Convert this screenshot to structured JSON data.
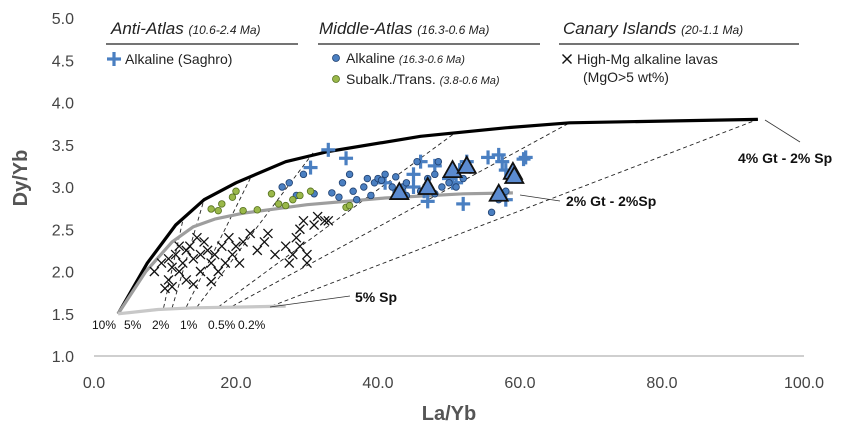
{
  "chart_data": {
    "type": "scatter",
    "xlabel": "La/Yb",
    "ylabel": "Dy/Yb",
    "xlim": [
      0,
      100
    ],
    "ylim": [
      1.0,
      5.0
    ],
    "x_ticks": [
      "0.0",
      "20.0",
      "40.0",
      "60.0",
      "80.0",
      "100.0"
    ],
    "y_ticks": [
      "1.0",
      "1.5",
      "2.0",
      "2.5",
      "3.0",
      "3.5",
      "4.0",
      "4.5",
      "5.0"
    ],
    "grid": false,
    "colors": {
      "blue_cross": "#4a7fc1",
      "blue_dot": "#4a7fc1",
      "green_dot": "#9ab84a",
      "triangle": "#5b8bd0",
      "black_curve": "#000000",
      "gray_curve": "#9e9e9e",
      "light_curve": "#c8c8c8"
    },
    "legend_groups": [
      {
        "header": "Anti-Atlas",
        "age": "(10.6-2.4 Ma)",
        "entries": [
          {
            "marker": "blue-cross",
            "label": "Alkaline (Saghro)",
            "age": ""
          }
        ]
      },
      {
        "header": "Middle-Atlas",
        "age": "(16.3-0.6 Ma)",
        "entries": [
          {
            "marker": "blue-dot",
            "label": "Alkaline",
            "age": "(16.3-0.6 Ma)"
          },
          {
            "marker": "green-dot",
            "label": "Subalk./Trans.",
            "age": "(3.8-0.6 Ma)"
          }
        ]
      },
      {
        "header": "Canary Islands",
        "age": "(20-1.1 Ma)",
        "entries": [
          {
            "marker": "black-x",
            "label": "High-Mg alkaline lavas",
            "age": ""
          },
          {
            "marker": "none",
            "label": "(MgO>5 wt%)",
            "age": ""
          }
        ]
      }
    ],
    "melting_curves": [
      {
        "name": "4% Gt - 2% Sp",
        "points": [
          [
            3.4,
            1.5
          ],
          [
            7.5,
            2.1
          ],
          [
            11.5,
            2.55
          ],
          [
            15.5,
            2.85
          ],
          [
            20,
            3.05
          ],
          [
            27,
            3.3
          ],
          [
            33,
            3.42
          ],
          [
            46,
            3.6
          ],
          [
            58,
            3.7
          ],
          [
            67,
            3.76
          ],
          [
            80,
            3.78
          ],
          [
            93.5,
            3.8
          ]
        ]
      },
      {
        "name": "2% Gt - 2%Sp",
        "points": [
          [
            3.4,
            1.5
          ],
          [
            7.3,
            2.0
          ],
          [
            11,
            2.35
          ],
          [
            14,
            2.53
          ],
          [
            17,
            2.62
          ],
          [
            21,
            2.69
          ],
          [
            30,
            2.79
          ],
          [
            41,
            2.87
          ],
          [
            52,
            2.92
          ],
          [
            59,
            2.93
          ]
        ]
      },
      {
        "name": "5% Sp",
        "points": [
          [
            3.4,
            1.5
          ],
          [
            9,
            1.55
          ],
          [
            14,
            1.57
          ],
          [
            21,
            1.58
          ],
          [
            27,
            1.59
          ]
        ]
      }
    ],
    "melt_fraction_labels": [
      "10%",
      "5%",
      "2%",
      "1%",
      "0.5%",
      "0.2%"
    ],
    "melt_lines": [
      [
        [
          9.8,
          1.57
        ],
        [
          12.5,
          2.6
        ]
      ],
      [
        [
          11,
          1.57
        ],
        [
          15.5,
          2.85
        ]
      ],
      [
        [
          13,
          1.58
        ],
        [
          22,
          3.1
        ]
      ],
      [
        [
          14.5,
          1.58
        ],
        [
          31,
          3.42
        ]
      ],
      [
        [
          17.5,
          1.58
        ],
        [
          51,
          3.65
        ]
      ],
      [
        [
          19.5,
          1.59
        ],
        [
          67,
          3.76
        ]
      ],
      [
        [
          25,
          1.59
        ],
        [
          93.5,
          3.8
        ]
      ]
    ],
    "series": [
      {
        "name": "Alkaline (Saghro)",
        "marker": "blue-cross",
        "points": [
          [
            30.5,
            3.23
          ],
          [
            33,
            3.44
          ],
          [
            35.5,
            3.34
          ],
          [
            41,
            3.05
          ],
          [
            45,
            3.15
          ],
          [
            45,
            3.0
          ],
          [
            46.5,
            2.95
          ],
          [
            47,
            2.83
          ],
          [
            48,
            3.25
          ],
          [
            50,
            3.1
          ],
          [
            50.5,
            3.05
          ],
          [
            51,
            3.05
          ],
          [
            51.5,
            3.2
          ],
          [
            52.5,
            3.3
          ],
          [
            52,
            2.8
          ],
          [
            55.5,
            3.35
          ],
          [
            57,
            3.38
          ],
          [
            58,
            3.2
          ],
          [
            58,
            2.85
          ],
          [
            60.5,
            3.33
          ],
          [
            60.8,
            3.35
          ],
          [
            57.5,
            3.3
          ],
          [
            46,
            3.3
          ],
          [
            43,
            2.95
          ]
        ]
      },
      {
        "name": "Alkaline",
        "marker": "blue-dot",
        "points": [
          [
            26.5,
            3.0
          ],
          [
            27.5,
            3.05
          ],
          [
            28.5,
            2.9
          ],
          [
            29.5,
            3.15
          ],
          [
            31,
            2.92
          ],
          [
            33.5,
            2.93
          ],
          [
            34.5,
            2.88
          ],
          [
            35,
            3.05
          ],
          [
            36,
            3.15
          ],
          [
            36.5,
            2.95
          ],
          [
            37,
            2.85
          ],
          [
            38,
            3.0
          ],
          [
            38.5,
            3.1
          ],
          [
            39,
            2.9
          ],
          [
            39.5,
            3.05
          ],
          [
            40,
            3.1
          ],
          [
            40.5,
            3.08
          ],
          [
            41,
            3.15
          ],
          [
            42,
            3.0
          ],
          [
            42.5,
            3.12
          ],
          [
            43.5,
            3.0
          ],
          [
            44,
            3.05
          ],
          [
            45.5,
            3.3
          ],
          [
            46,
            2.95
          ],
          [
            47,
            3.1
          ],
          [
            48,
            3.15
          ],
          [
            48.5,
            3.3
          ],
          [
            49,
            3.0
          ],
          [
            50,
            3.05
          ],
          [
            51,
            3.0
          ],
          [
            52,
            3.1
          ],
          [
            53,
            3.2
          ],
          [
            56,
            2.7
          ],
          [
            57,
            2.85
          ],
          [
            58,
            2.95
          ],
          [
            48,
            2.92
          ],
          [
            44,
            2.9
          ]
        ]
      },
      {
        "name": "Subalk./Trans.",
        "marker": "green-dot",
        "points": [
          [
            16.5,
            2.74
          ],
          [
            17.5,
            2.72
          ],
          [
            18,
            2.8
          ],
          [
            19.5,
            2.88
          ],
          [
            20,
            2.95
          ],
          [
            21,
            2.72
          ],
          [
            23,
            2.73
          ],
          [
            25,
            2.92
          ],
          [
            26,
            2.8
          ],
          [
            27,
            2.78
          ],
          [
            28,
            2.85
          ],
          [
            29,
            2.9
          ],
          [
            30.5,
            2.95
          ],
          [
            35.5,
            2.76
          ],
          [
            36,
            2.78
          ]
        ]
      },
      {
        "name": "High-Mg alkaline lavas",
        "marker": "black-x",
        "points": [
          [
            8.5,
            2.0
          ],
          [
            9.5,
            2.1
          ],
          [
            10,
            1.8
          ],
          [
            10.5,
            2.15
          ],
          [
            11,
            2.05
          ],
          [
            11,
            1.82
          ],
          [
            11.5,
            2.2
          ],
          [
            12,
            2.0
          ],
          [
            12.5,
            2.1
          ],
          [
            13,
            2.25
          ],
          [
            13,
            1.9
          ],
          [
            13.5,
            2.3
          ],
          [
            14,
            2.15
          ],
          [
            14,
            1.85
          ],
          [
            14.5,
            2.4
          ],
          [
            15,
            2.2
          ],
          [
            15,
            2.0
          ],
          [
            15.5,
            2.35
          ],
          [
            16,
            2.25
          ],
          [
            16.5,
            2.1
          ],
          [
            16.5,
            1.88
          ],
          [
            17,
            2.2
          ],
          [
            17.5,
            2.0
          ],
          [
            18,
            2.3
          ],
          [
            19,
            2.4
          ],
          [
            19.5,
            2.2
          ],
          [
            20,
            2.3
          ],
          [
            20.5,
            2.1
          ],
          [
            21,
            2.35
          ],
          [
            22,
            2.45
          ],
          [
            23,
            2.25
          ],
          [
            24,
            2.35
          ],
          [
            24.5,
            2.45
          ],
          [
            25.5,
            2.2
          ],
          [
            27,
            2.3
          ],
          [
            27.5,
            2.1
          ],
          [
            28,
            2.2
          ],
          [
            28.5,
            2.4
          ],
          [
            29,
            2.5
          ],
          [
            29,
            2.3
          ],
          [
            29.5,
            2.6
          ],
          [
            30,
            2.2
          ],
          [
            30,
            2.1
          ],
          [
            31,
            2.55
          ],
          [
            31.5,
            2.65
          ],
          [
            32.5,
            2.6
          ],
          [
            33,
            2.6
          ],
          [
            12,
            2.3
          ],
          [
            10.5,
            1.9
          ],
          [
            18.5,
            2.1
          ]
        ]
      },
      {
        "name": "triangles",
        "marker": "blue-triangle",
        "points": [
          [
            43,
            2.94
          ],
          [
            47,
            3.0
          ],
          [
            50.5,
            3.2
          ],
          [
            52.5,
            3.25
          ],
          [
            57,
            2.92
          ],
          [
            59,
            3.18
          ],
          [
            59.2,
            3.13
          ]
        ]
      }
    ]
  }
}
